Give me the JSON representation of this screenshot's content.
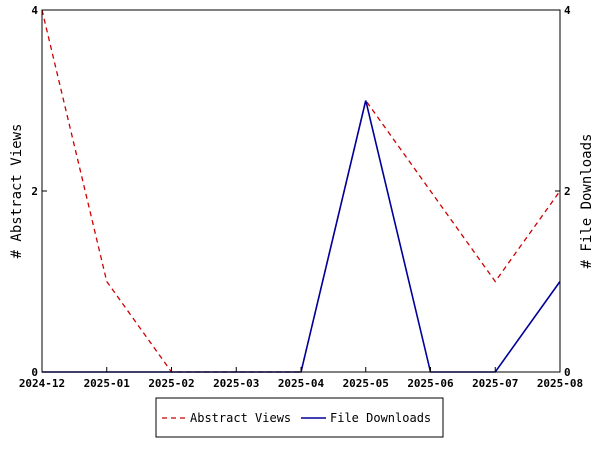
{
  "chart_data": {
    "type": "line",
    "x": [
      "2024-12",
      "2025-01",
      "2025-02",
      "2025-03",
      "2025-04",
      "2025-05",
      "2025-06",
      "2025-07",
      "2025-08"
    ],
    "series": [
      {
        "name": "Abstract Views",
        "values": [
          4,
          1,
          0,
          0,
          0,
          3,
          2,
          1,
          2
        ],
        "color": "#cc0000",
        "dashed": true,
        "axis": "left"
      },
      {
        "name": "File Downloads",
        "values": [
          0,
          0,
          0,
          0,
          0,
          3,
          0,
          0,
          1
        ],
        "color": "#000099",
        "dashed": false,
        "axis": "right"
      }
    ],
    "ylabel_left": "# Abstract Views",
    "ylabel_right": "# File Downloads",
    "ylim": [
      0,
      4
    ],
    "yticks": [
      "0",
      "2",
      "4"
    ],
    "grid": false,
    "legend": "bottom"
  }
}
